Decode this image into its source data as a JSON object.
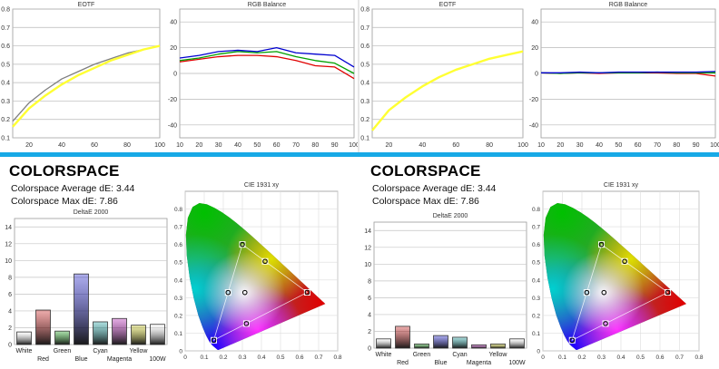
{
  "colors": {
    "accent_bar": "#17a9e6",
    "eotf_measured": "#ffff33",
    "eotf_target": "#7f7f7f",
    "red": "#e00000",
    "green": "#00a000",
    "blue": "#0000d0"
  },
  "left": {
    "colorspace_title": "COLORSPACE",
    "avg_de_text": "Colorspace Average dE: 3.44",
    "max_de_text": "Colorspace Max dE: 7.86"
  },
  "right": {
    "colorspace_title": "COLORSPACE",
    "avg_de_text": "Colorspace Average dE: 3.44",
    "max_de_text": "Colorspace Max dE: 7.86"
  },
  "chart_data": [
    {
      "id": "eotf-left",
      "type": "line",
      "title": "EOTF",
      "xlim": [
        10,
        100
      ],
      "ylim": [
        0.1,
        0.8
      ],
      "xticks": [
        20,
        40,
        60,
        80,
        100
      ],
      "yticks": [
        0.1,
        0.2,
        0.3,
        0.4,
        0.5,
        0.6,
        0.7,
        0.8
      ],
      "x": [
        10,
        20,
        30,
        40,
        50,
        60,
        70,
        80,
        90,
        100
      ],
      "series": [
        {
          "role": "target",
          "values": [
            0.19,
            0.29,
            0.36,
            0.42,
            0.46,
            0.5,
            0.53,
            0.56,
            0.58,
            0.6
          ],
          "color": "#7f7f7f"
        },
        {
          "role": "measured",
          "values": [
            0.16,
            0.26,
            0.33,
            0.39,
            0.44,
            0.48,
            0.52,
            0.55,
            0.58,
            0.6
          ],
          "color": "#ffff33"
        }
      ]
    },
    {
      "id": "rgb-left",
      "type": "line",
      "title": "RGB Balance",
      "xlim": [
        10,
        100
      ],
      "ylim": [
        -50,
        50
      ],
      "xticks": [
        10,
        20,
        30,
        40,
        50,
        60,
        70,
        80,
        90,
        100
      ],
      "yticks": [
        -40,
        -20,
        0,
        20,
        40
      ],
      "x": [
        10,
        20,
        30,
        40,
        50,
        60,
        70,
        80,
        90,
        100
      ],
      "series": [
        {
          "values": [
            9,
            11,
            13,
            14,
            14,
            13,
            10,
            6,
            5,
            -4
          ],
          "color": "#e00000"
        },
        {
          "values": [
            10,
            12,
            15,
            17,
            16,
            17,
            13,
            10,
            8,
            0
          ],
          "color": "#00a000"
        },
        {
          "values": [
            12,
            14,
            17,
            18,
            17,
            20,
            16,
            15,
            14,
            5
          ],
          "color": "#0000d0"
        }
      ]
    },
    {
      "id": "eotf-right",
      "type": "line",
      "title": "EOTF",
      "xlim": [
        10,
        100
      ],
      "ylim": [
        0.1,
        0.8
      ],
      "xticks": [
        20,
        40,
        60,
        80,
        100
      ],
      "yticks": [
        0.1,
        0.2,
        0.3,
        0.4,
        0.5,
        0.6,
        0.7,
        0.8
      ],
      "x": [
        10,
        20,
        30,
        40,
        50,
        60,
        70,
        80,
        90,
        100
      ],
      "series": [
        {
          "role": "target",
          "values": [
            0.14,
            0.25,
            0.32,
            0.38,
            0.43,
            0.47,
            0.5,
            0.53,
            0.55,
            0.57
          ],
          "color": "#7f7f7f"
        },
        {
          "role": "measured",
          "values": [
            0.14,
            0.25,
            0.32,
            0.38,
            0.43,
            0.47,
            0.5,
            0.53,
            0.55,
            0.57
          ],
          "color": "#ffff33"
        }
      ]
    },
    {
      "id": "rgb-right",
      "type": "line",
      "title": "RGB Balance",
      "xlim": [
        10,
        100
      ],
      "ylim": [
        -50,
        50
      ],
      "xticks": [
        10,
        20,
        30,
        40,
        50,
        60,
        70,
        80,
        90,
        100
      ],
      "yticks": [
        -40,
        -20,
        0,
        20,
        40
      ],
      "x": [
        10,
        20,
        30,
        40,
        50,
        60,
        70,
        80,
        90,
        100
      ],
      "series": [
        {
          "values": [
            0.5,
            0,
            0.5,
            0,
            0.5,
            0.5,
            0.5,
            0,
            0,
            -2
          ],
          "color": "#e00000"
        },
        {
          "values": [
            0.5,
            0,
            0.5,
            0.5,
            0.5,
            0.5,
            1,
            0.5,
            0.5,
            0.5
          ],
          "color": "#00a000"
        },
        {
          "values": [
            0.5,
            0.5,
            1,
            0.5,
            1,
            1,
            1,
            1,
            1,
            1.5
          ],
          "color": "#0000d0"
        }
      ]
    },
    {
      "id": "de-left",
      "type": "bar",
      "title": "DeltaE 2000",
      "ylim": [
        0,
        15
      ],
      "yticks": [
        0,
        2,
        4,
        6,
        8,
        10,
        12,
        14
      ],
      "categories": [
        "White",
        "Red",
        "Green",
        "Blue",
        "Cyan",
        "Magenta",
        "Yellow",
        "100W"
      ],
      "values": [
        1.5,
        4.1,
        1.6,
        8.4,
        2.7,
        3.1,
        2.3,
        2.4
      ],
      "bar_colors": [
        "#ffffff",
        "#c81818",
        "#18a018",
        "#1818c8",
        "#18a0a0",
        "#b018b0",
        "#c8c818",
        "#ffffff"
      ]
    },
    {
      "id": "de-right",
      "type": "bar",
      "title": "DeltaE 2000",
      "ylim": [
        0,
        15
      ],
      "yticks": [
        0,
        2,
        4,
        6,
        8,
        10,
        12,
        14
      ],
      "categories": [
        "White",
        "Red",
        "Green",
        "Blue",
        "Cyan",
        "Magenta",
        "Yellow",
        "100W"
      ],
      "values": [
        1.1,
        2.6,
        0.5,
        1.5,
        1.3,
        0.4,
        0.5,
        1.1
      ],
      "bar_colors": [
        "#ffffff",
        "#c81818",
        "#18a018",
        "#1818c8",
        "#18a0a0",
        "#b018b0",
        "#c8c818",
        "#ffffff"
      ]
    },
    {
      "id": "cie-left",
      "type": "scatter",
      "title": "CIE 1931 xy",
      "xlim": [
        0,
        0.8
      ],
      "ylim": [
        0,
        0.9
      ],
      "xticks": [
        0,
        0.1,
        0.2,
        0.3,
        0.4,
        0.5,
        0.6,
        0.7,
        0.8
      ],
      "yticks": [
        0,
        0.1,
        0.2,
        0.3,
        0.4,
        0.5,
        0.6,
        0.7,
        0.8
      ],
      "gamut_triangle": [
        [
          0.64,
          0.33
        ],
        [
          0.3,
          0.6
        ],
        [
          0.15,
          0.06
        ]
      ],
      "targets": [
        [
          0.64,
          0.33
        ],
        [
          0.3,
          0.6
        ],
        [
          0.15,
          0.06
        ],
        [
          0.225,
          0.329
        ],
        [
          0.321,
          0.154
        ],
        [
          0.419,
          0.505
        ]
      ],
      "measured": [
        [
          0.64,
          0.33
        ],
        [
          0.3,
          0.6
        ],
        [
          0.15,
          0.06
        ],
        [
          0.225,
          0.329
        ],
        [
          0.321,
          0.154
        ],
        [
          0.419,
          0.505
        ],
        [
          0.313,
          0.329
        ]
      ]
    },
    {
      "id": "cie-right",
      "type": "scatter",
      "title": "CIE 1931 xy",
      "xlim": [
        0,
        0.8
      ],
      "ylim": [
        0,
        0.9
      ],
      "xticks": [
        0,
        0.1,
        0.2,
        0.3,
        0.4,
        0.5,
        0.6,
        0.7,
        0.8
      ],
      "yticks": [
        0,
        0.1,
        0.2,
        0.3,
        0.4,
        0.5,
        0.6,
        0.7,
        0.8
      ],
      "gamut_triangle": [
        [
          0.64,
          0.33
        ],
        [
          0.3,
          0.6
        ],
        [
          0.15,
          0.06
        ]
      ],
      "targets": [
        [
          0.64,
          0.33
        ],
        [
          0.3,
          0.6
        ],
        [
          0.15,
          0.06
        ],
        [
          0.225,
          0.329
        ],
        [
          0.321,
          0.154
        ],
        [
          0.419,
          0.505
        ]
      ],
      "measured": [
        [
          0.64,
          0.33
        ],
        [
          0.3,
          0.6
        ],
        [
          0.15,
          0.06
        ],
        [
          0.225,
          0.329
        ],
        [
          0.321,
          0.154
        ],
        [
          0.419,
          0.505
        ],
        [
          0.313,
          0.329
        ]
      ]
    }
  ]
}
